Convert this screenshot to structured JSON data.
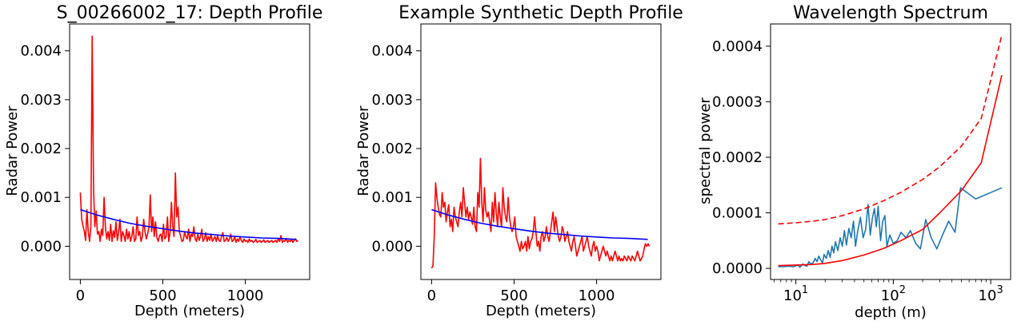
{
  "colors": {
    "red": "#ff0000",
    "blue": "#0000ff",
    "mpl_blue": "#1f77b4"
  },
  "chart_data": [
    {
      "type": "line",
      "title": "S_00266002_17: Depth Profile",
      "xlabel": "Depth (meters)",
      "ylabel": "Radar Power",
      "xlim": [
        -65,
        1390
      ],
      "ylim": [
        -0.00068,
        0.00455
      ],
      "xticks": [
        0,
        500,
        1000
      ],
      "xtick_labels": [
        "0",
        "500",
        "1000"
      ],
      "yticks": [
        0.0,
        0.001,
        0.002,
        0.003,
        0.004
      ],
      "ytick_labels": [
        "0.000",
        "0.001",
        "0.002",
        "0.003",
        "0.004"
      ],
      "series": [
        {
          "color": "#ff0000",
          "x": [
            0,
            8,
            16,
            24,
            32,
            40,
            48,
            56,
            64,
            72,
            80,
            88,
            96,
            104,
            112,
            120,
            128,
            136,
            144,
            152,
            160,
            168,
            176,
            184,
            192,
            200,
            208,
            216,
            224,
            232,
            240,
            248,
            256,
            264,
            272,
            280,
            288,
            296,
            304,
            312,
            320,
            328,
            336,
            344,
            352,
            360,
            368,
            376,
            384,
            392,
            400,
            408,
            416,
            424,
            432,
            440,
            448,
            456,
            464,
            472,
            480,
            488,
            496,
            504,
            512,
            520,
            528,
            536,
            544,
            552,
            560,
            568,
            576,
            584,
            592,
            600,
            608,
            616,
            624,
            632,
            640,
            648,
            656,
            664,
            672,
            680,
            688,
            696,
            704,
            712,
            720,
            728,
            736,
            744,
            752,
            760,
            768,
            776,
            784,
            792,
            800,
            808,
            816,
            824,
            832,
            840,
            848,
            856,
            864,
            872,
            880,
            888,
            896,
            904,
            912,
            920,
            928,
            936,
            944,
            952,
            960,
            968,
            976,
            984,
            992,
            1000,
            1008,
            1016,
            1024,
            1032,
            1040,
            1048,
            1056,
            1064,
            1072,
            1080,
            1088,
            1096,
            1104,
            1112,
            1120,
            1128,
            1136,
            1144,
            1152,
            1160,
            1168,
            1176,
            1184,
            1192,
            1200,
            1208,
            1216,
            1224,
            1232,
            1240,
            1248,
            1256,
            1264,
            1272,
            1280,
            1288,
            1296,
            1304,
            1312,
            1320
          ],
          "y": [
            0.0011,
            0.00055,
            0.00042,
            0.0003,
            0.00012,
            0.00075,
            0.0003,
            0.0001,
            0.0004,
            0.0043,
            0.0012,
            0.0004,
            0.00072,
            0.00025,
            0.0003,
            0.0001,
            0.00035,
            0.00022,
            0.001,
            0.0004,
            0.00015,
            0.0003,
            0.00012,
            0.00045,
            0.0001,
            0.00032,
            0.00018,
            0.0005,
            0.00012,
            0.00028,
            0.00055,
            0.0001,
            0.0003,
            0.00022,
            0.0001,
            0.00035,
            0.00015,
            0.0003,
            0.0001,
            0.0002,
            0.0004,
            0.0001,
            0.00015,
            0.0006,
            0.00022,
            0.0003,
            0.0001,
            0.0002,
            0.00055,
            0.0003,
            0.00015,
            0.00025,
            0.0004,
            0.00105,
            0.0003,
            0.0006,
            0.0002,
            0.0005,
            0.00018,
            0.0001,
            0.00022,
            0.00025,
            0.0001,
            0.00045,
            0.00015,
            0.0002,
            0.0006,
            0.0001,
            0.0003,
            0.0009,
            0.0004,
            0.0002,
            0.0015,
            0.0006,
            0.0008,
            0.0003,
            0.0002,
            0.0001,
            0.00012,
            0.0003,
            0.0002,
            0.00015,
            0.00035,
            0.0001,
            0.00025,
            0.0002,
            0.0004,
            0.00015,
            0.0001,
            0.00025,
            0.00012,
            0.0002,
            0.00035,
            0.0001,
            0.00015,
            0.00028,
            0.0001,
            0.0002,
            0.00012,
            0.00025,
            0.0001,
            0.00015,
            0.0002,
            0.0001,
            0.00022,
            0.00012,
            0.0001,
            0.0002,
            0.00028,
            0.0001,
            0.00012,
            0.00018,
            0.0001,
            0.00015,
            0.00025,
            0.0001,
            0.00012,
            0.0002,
            8e-05,
            0.00015,
            0.0001,
            0.0002,
            0.00012,
            8e-05,
            0.00015,
            0.0001,
            0.00012,
            8e-05,
            0.00015,
            0.0001,
            0.00012,
            8e-05,
            0.0001,
            0.00014,
            8e-05,
            0.0001,
            0.00012,
            8e-05,
            0.0001,
            0.00013,
            8e-05,
            0.0001,
            0.00012,
            8e-05,
            0.0001,
            0.00012,
            8e-05,
            0.0001,
            0.00012,
            8e-05,
            0.00015,
            0.0001,
            0.00022,
            8e-05,
            0.00012,
            0.0001,
            0.00016,
            8e-05,
            0.00012,
            0.0001,
            0.00014,
            8e-05,
            0.00012,
            0.00015,
            0.0001,
            0.00012
          ]
        },
        {
          "color": "#0000ff",
          "x": [
            0,
            100,
            200,
            300,
            400,
            500,
            600,
            700,
            800,
            900,
            1000,
            1100,
            1200,
            1310
          ],
          "y": [
            0.00075,
            0.00064,
            0.00055,
            0.00047,
            0.00041,
            0.00036,
            0.00031,
            0.00027,
            0.00024,
            0.00021,
            0.00019,
            0.00017,
            0.00016,
            0.00014
          ]
        }
      ]
    },
    {
      "type": "line",
      "title": "Example Synthetic Depth Profile",
      "xlabel": "Depth (meters)",
      "ylabel": "Radar Power",
      "xlim": [
        -65,
        1390
      ],
      "ylim": [
        -0.00068,
        0.00455
      ],
      "xticks": [
        0,
        500,
        1000
      ],
      "xtick_labels": [
        "0",
        "500",
        "1000"
      ],
      "yticks": [
        0.0,
        0.001,
        0.002,
        0.003,
        0.004
      ],
      "ytick_labels": [
        "0.000",
        "0.001",
        "0.002",
        "0.003",
        "0.004"
      ],
      "series": [
        {
          "color": "#ff0000",
          "x": [
            0,
            8,
            16,
            24,
            32,
            40,
            48,
            56,
            64,
            72,
            80,
            88,
            96,
            104,
            112,
            120,
            128,
            136,
            144,
            152,
            160,
            168,
            176,
            184,
            192,
            200,
            208,
            216,
            224,
            232,
            240,
            248,
            256,
            264,
            272,
            280,
            288,
            296,
            304,
            312,
            320,
            328,
            336,
            344,
            352,
            360,
            368,
            376,
            384,
            392,
            400,
            408,
            416,
            424,
            432,
            440,
            448,
            456,
            464,
            472,
            480,
            488,
            496,
            504,
            512,
            520,
            528,
            536,
            544,
            552,
            560,
            568,
            576,
            584,
            592,
            600,
            608,
            616,
            624,
            632,
            640,
            648,
            656,
            664,
            672,
            680,
            688,
            696,
            704,
            712,
            720,
            728,
            736,
            744,
            752,
            760,
            768,
            776,
            784,
            792,
            800,
            808,
            816,
            824,
            832,
            840,
            848,
            856,
            864,
            872,
            880,
            888,
            896,
            904,
            912,
            920,
            928,
            936,
            944,
            952,
            960,
            968,
            976,
            984,
            992,
            1000,
            1008,
            1016,
            1024,
            1032,
            1040,
            1048,
            1056,
            1064,
            1072,
            1080,
            1088,
            1096,
            1104,
            1112,
            1120,
            1128,
            1136,
            1144,
            1152,
            1160,
            1168,
            1176,
            1184,
            1192,
            1200,
            1208,
            1216,
            1224,
            1232,
            1240,
            1248,
            1256,
            1264,
            1272,
            1280,
            1288,
            1296,
            1304,
            1312,
            1320
          ],
          "y": [
            -0.00045,
            -0.0004,
            0.0002,
            0.0013,
            0.001,
            0.0008,
            0.00065,
            0.0006,
            0.0011,
            0.0008,
            0.0009,
            0.0005,
            0.0007,
            0.00085,
            0.0004,
            0.00055,
            0.0003,
            0.0008,
            0.0006,
            0.0005,
            0.0004,
            0.0007,
            0.0009,
            0.0006,
            0.0012,
            0.0009,
            0.0006,
            0.0008,
            0.00055,
            0.0007,
            0.0006,
            0.00045,
            0.0008,
            0.0004,
            0.0003,
            0.0011,
            0.0008,
            0.0018,
            0.0009,
            0.0005,
            0.0012,
            0.00075,
            0.0006,
            0.0007,
            0.0005,
            0.0003,
            0.0009,
            0.0005,
            0.0011,
            0.0007,
            0.0004,
            0.0009,
            0.0006,
            0.0004,
            0.0012,
            0.0008,
            0.0006,
            0.0005,
            0.001,
            0.0006,
            0.0004,
            0.0003,
            0.0004,
            0.0006,
            0.0002,
            0.0001,
            0.0,
            -0.0001,
            0.0001,
            -5e-05,
            0.0,
            0.0001,
            -0.0001,
            0.0002,
            -5e-05,
            0.0001,
            0.00015,
            0.0003,
            0.0006,
            0.0003,
            0.0,
            0.0001,
            -0.0001,
            0.0002,
            0.0003,
            0.0001,
            0.0002,
            0.0004,
            0.0002,
            0.0001,
            0.0003,
            0.0005,
            0.0007,
            0.0003,
            0.0006,
            0.0004,
            0.0002,
            0.0001,
            0.0002,
            0.0004,
            0.0003,
            0.0001,
            0.0002,
            0.0003,
            0.0001,
            0.0,
            -0.0001,
            0.0001,
            0.0002,
            0.0,
            -0.0002,
            -0.0001,
            0.0,
            0.0001,
            0.0002,
            -0.0001,
            0.0,
            0.0001,
            0.0002,
            0.0,
            -0.0001,
            -0.0002,
            0.0,
            0.0001,
            -0.0001,
            0.0,
            -0.0001,
            -0.0003,
            -0.0002,
            -0.0001,
            0.0,
            -0.0001,
            -0.0002,
            -0.0001,
            -0.0002,
            -0.0003,
            -0.0002,
            -0.0003,
            -0.0002,
            -0.0001,
            -0.0002,
            -0.0003,
            -0.0002,
            -0.0003,
            -0.00025,
            -0.0003,
            -0.0002,
            -0.00025,
            -0.0003,
            -0.0002,
            -0.00025,
            -0.0003,
            -0.0002,
            -0.00025,
            -0.0003,
            -0.0002,
            -0.0001,
            -0.0002,
            -0.0003,
            -0.00025,
            -0.0002,
            -5e-05,
            5e-05,
            0.0,
            5e-05,
            0.0
          ]
        },
        {
          "color": "#0000ff",
          "x": [
            0,
            100,
            200,
            300,
            400,
            500,
            600,
            700,
            800,
            900,
            1000,
            1100,
            1200,
            1310
          ],
          "y": [
            0.00075,
            0.00064,
            0.00055,
            0.00047,
            0.00041,
            0.00036,
            0.00031,
            0.00027,
            0.00024,
            0.00021,
            0.00019,
            0.00017,
            0.00016,
            0.00014
          ]
        }
      ]
    },
    {
      "type": "line",
      "title": "Wavelength Spectrum",
      "xlabel": "depth (m)",
      "ylabel": "spectral power",
      "xscale": "log",
      "xlim": [
        5.5,
        1600
      ],
      "ylim": [
        -2e-05,
        0.00044
      ],
      "xticks": [
        10,
        100,
        1000
      ],
      "xtick_labels": [
        {
          "base": "10",
          "exp": "1"
        },
        {
          "base": "10",
          "exp": "2"
        },
        {
          "base": "10",
          "exp": "3"
        }
      ],
      "yticks": [
        0.0,
        0.0001,
        0.0002,
        0.0003,
        0.0004
      ],
      "ytick_labels": [
        "0.0000",
        "0.0001",
        "0.0002",
        "0.0003",
        "0.0004"
      ],
      "series": [
        {
          "color": "#1f77b4",
          "style": "solid",
          "x": [
            6.6,
            7.5,
            8.5,
            9.5,
            10.5,
            11,
            11.8,
            12.5,
            13,
            13.6,
            14.2,
            15,
            15.8,
            16.5,
            17.2,
            18,
            18.8,
            19.5,
            20.5,
            21.5,
            22.5,
            23.5,
            24.5,
            25.5,
            27,
            28.5,
            30,
            31.5,
            33,
            35,
            37,
            39,
            41,
            43,
            46,
            49,
            52,
            55,
            58,
            61,
            64,
            67,
            70,
            74,
            78,
            82,
            86,
            92,
            100,
            110,
            120,
            135,
            150,
            170,
            190,
            215,
            245,
            280,
            320,
            370,
            430,
            490,
            700,
            1300
          ],
          "y": [
            3e-06,
            3e-06,
            4e-06,
            3e-06,
            6e-06,
            2e-06,
            8e-06,
            5e-06,
            4e-06,
            1.2e-05,
            8e-06,
            1e-05,
            1.8e-05,
            1.2e-05,
            2.2e-05,
            1.5e-05,
            1e-05,
            2.5e-05,
            1.8e-05,
            3.2e-05,
            2e-05,
            4e-05,
            2.8e-05,
            4.8e-05,
            3.2e-05,
            5.5e-05,
            4e-05,
            6.8e-05,
            4.2e-05,
            7.2e-05,
            5.5e-05,
            8.5e-05,
            4e-05,
            6.5e-05,
            9.2e-05,
            5.5e-05,
            7e-05,
            0.000115,
            6e-05,
            9e-05,
            0.000108,
            7.5e-05,
            0.000112,
            5e-05,
            8.5e-05,
            9.5e-05,
            4e-05,
            6e-05,
            4.5e-05,
            5e-05,
            6.5e-05,
            5.5e-05,
            6.8e-05,
            4.5e-05,
            3.5e-05,
            8.8e-05,
            5.5e-05,
            3.5e-05,
            6e-05,
            8.5e-05,
            6.5e-05,
            0.000145,
            0.000125,
            0.000145
          ]
        },
        {
          "color": "#ff0000",
          "style": "solid",
          "x": [
            6.6,
            10,
            15,
            20,
            30,
            50,
            80,
            120,
            200,
            300,
            500,
            800,
            1300
          ],
          "y": [
            5e-06,
            6e-06,
            7e-06,
            9e-06,
            1.4e-05,
            2.4e-05,
            3.6e-05,
            5e-05,
            7e-05,
            0.0001,
            0.00014,
            0.00019,
            0.000348
          ]
        },
        {
          "color": "#ff0000",
          "style": "dashed",
          "x": [
            6.6,
            10,
            15,
            20,
            30,
            50,
            80,
            120,
            200,
            300,
            500,
            800,
            1300
          ],
          "y": [
            8e-05,
            8.2e-05,
            8.5e-05,
            8.8e-05,
            9.5e-05,
            0.000107,
            0.000122,
            0.000137,
            0.00016,
            0.000183,
            0.00022,
            0.00027,
            0.00042
          ]
        }
      ]
    }
  ]
}
